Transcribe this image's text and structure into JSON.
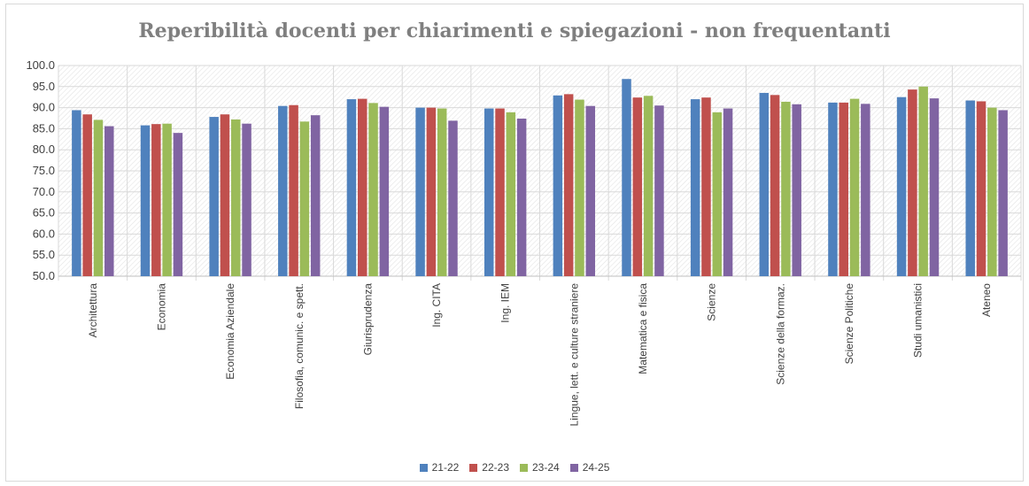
{
  "chart_data": {
    "type": "bar",
    "title": "Reperibilità docenti per chiarimenti e spiegazioni - non frequentanti",
    "xlabel": "",
    "ylabel": "",
    "ylim": [
      50,
      100
    ],
    "yticks": [
      "50.0",
      "55.0",
      "60.0",
      "65.0",
      "70.0",
      "75.0",
      "80.0",
      "85.0",
      "90.0",
      "95.0",
      "100.0"
    ],
    "grid": true,
    "legend_position": "bottom",
    "categories": [
      "Architettura",
      "Economia",
      "Economia Aziendale",
      "Filosofia, comunic. e spett.",
      "Giurisprudenza",
      "Ing. CITA",
      "Ing. IEM",
      "Lingue, lett. e culture straniere",
      "Matematica e fisica",
      "Scienze",
      "Scienze della formaz.",
      "Scienze Politiche",
      "Studi umanistici",
      "Ateneo"
    ],
    "series": [
      {
        "name": "21-22",
        "color": "#4f81bd",
        "values": [
          89.4,
          85.8,
          87.8,
          90.4,
          92.0,
          90.0,
          89.8,
          92.9,
          96.8,
          92.0,
          93.5,
          91.2,
          92.5,
          91.7
        ]
      },
      {
        "name": "22-23",
        "color": "#c0504d",
        "values": [
          88.4,
          86.1,
          88.4,
          90.6,
          92.1,
          90.0,
          89.8,
          93.2,
          92.4,
          92.4,
          93.0,
          91.2,
          94.3,
          91.5
        ]
      },
      {
        "name": "23-24",
        "color": "#9bbb59",
        "values": [
          87.1,
          86.2,
          87.2,
          86.7,
          91.1,
          89.8,
          88.9,
          91.9,
          92.8,
          88.9,
          91.4,
          92.1,
          95.0,
          90.0
        ]
      },
      {
        "name": "24-25",
        "color": "#8064a2",
        "values": [
          85.6,
          84.0,
          86.2,
          88.2,
          90.2,
          86.9,
          87.4,
          90.4,
          90.5,
          89.8,
          90.8,
          90.9,
          92.2,
          89.4
        ]
      }
    ]
  }
}
